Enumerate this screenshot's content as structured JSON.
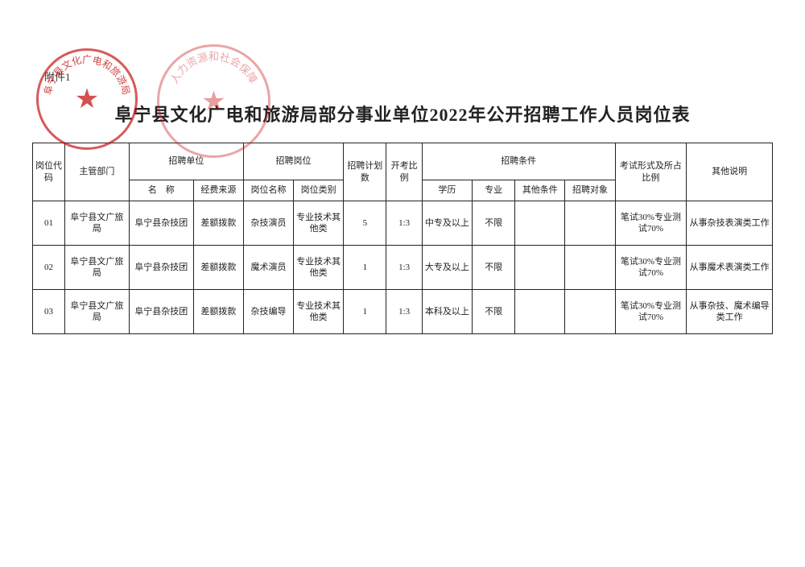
{
  "attachment_label": "附件1",
  "title": "阜宁县文化广电和旅游局部分事业单位2022年公开招聘工作人员岗位表",
  "stamp1_text": "阜宁县文化广电和旅游局",
  "stamp2_text": "人力资源和社会保障",
  "headers": {
    "code": "岗位代码",
    "dept": "主管部门",
    "recruit_unit": "招聘单位",
    "unit_name": "名　称",
    "unit_fund": "经费来源",
    "recruit_post": "招聘岗位",
    "post_name": "岗位名称",
    "post_type": "岗位类别",
    "plan": "招聘计划数",
    "ratio": "开考比例",
    "conditions": "招聘条件",
    "edu": "学历",
    "major": "专业",
    "other_cond": "其他条件",
    "target": "招聘对象",
    "exam": "考试形式及所占比例",
    "remark": "其他说明"
  },
  "col_widths_pct": [
    4.5,
    9,
    9,
    7,
    7,
    7,
    6,
    5,
    7,
    6,
    7,
    7,
    10,
    12
  ],
  "rows": [
    {
      "code": "01",
      "dept": "阜宁县文广旅局",
      "unit_name": "阜宁县杂技团",
      "unit_fund": "差额拨款",
      "post_name": "杂技演员",
      "post_type": "专业技术其他类",
      "plan": "5",
      "ratio": "1:3",
      "edu": "中专及以上",
      "major": "不限",
      "other_cond": "",
      "target": "",
      "exam": "笔试30%专业测试70%",
      "remark": "从事杂技表演类工作"
    },
    {
      "code": "02",
      "dept": "阜宁县文广旅局",
      "unit_name": "阜宁县杂技团",
      "unit_fund": "差额拨款",
      "post_name": "魔术演员",
      "post_type": "专业技术其他类",
      "plan": "1",
      "ratio": "1:3",
      "edu": "大专及以上",
      "major": "不限",
      "other_cond": "",
      "target": "",
      "exam": "笔试30%专业测试70%",
      "remark": "从事魔术表演类工作"
    },
    {
      "code": "03",
      "dept": "阜宁县文广旅局",
      "unit_name": "阜宁县杂技团",
      "unit_fund": "差额拨款",
      "post_name": "杂技编导",
      "post_type": "专业技术其他类",
      "plan": "1",
      "ratio": "1:3",
      "edu": "本科及以上",
      "major": "不限",
      "other_cond": "",
      "target": "",
      "exam": "笔试30%专业测试70%",
      "remark": "从事杂技、魔术编导类工作"
    }
  ]
}
